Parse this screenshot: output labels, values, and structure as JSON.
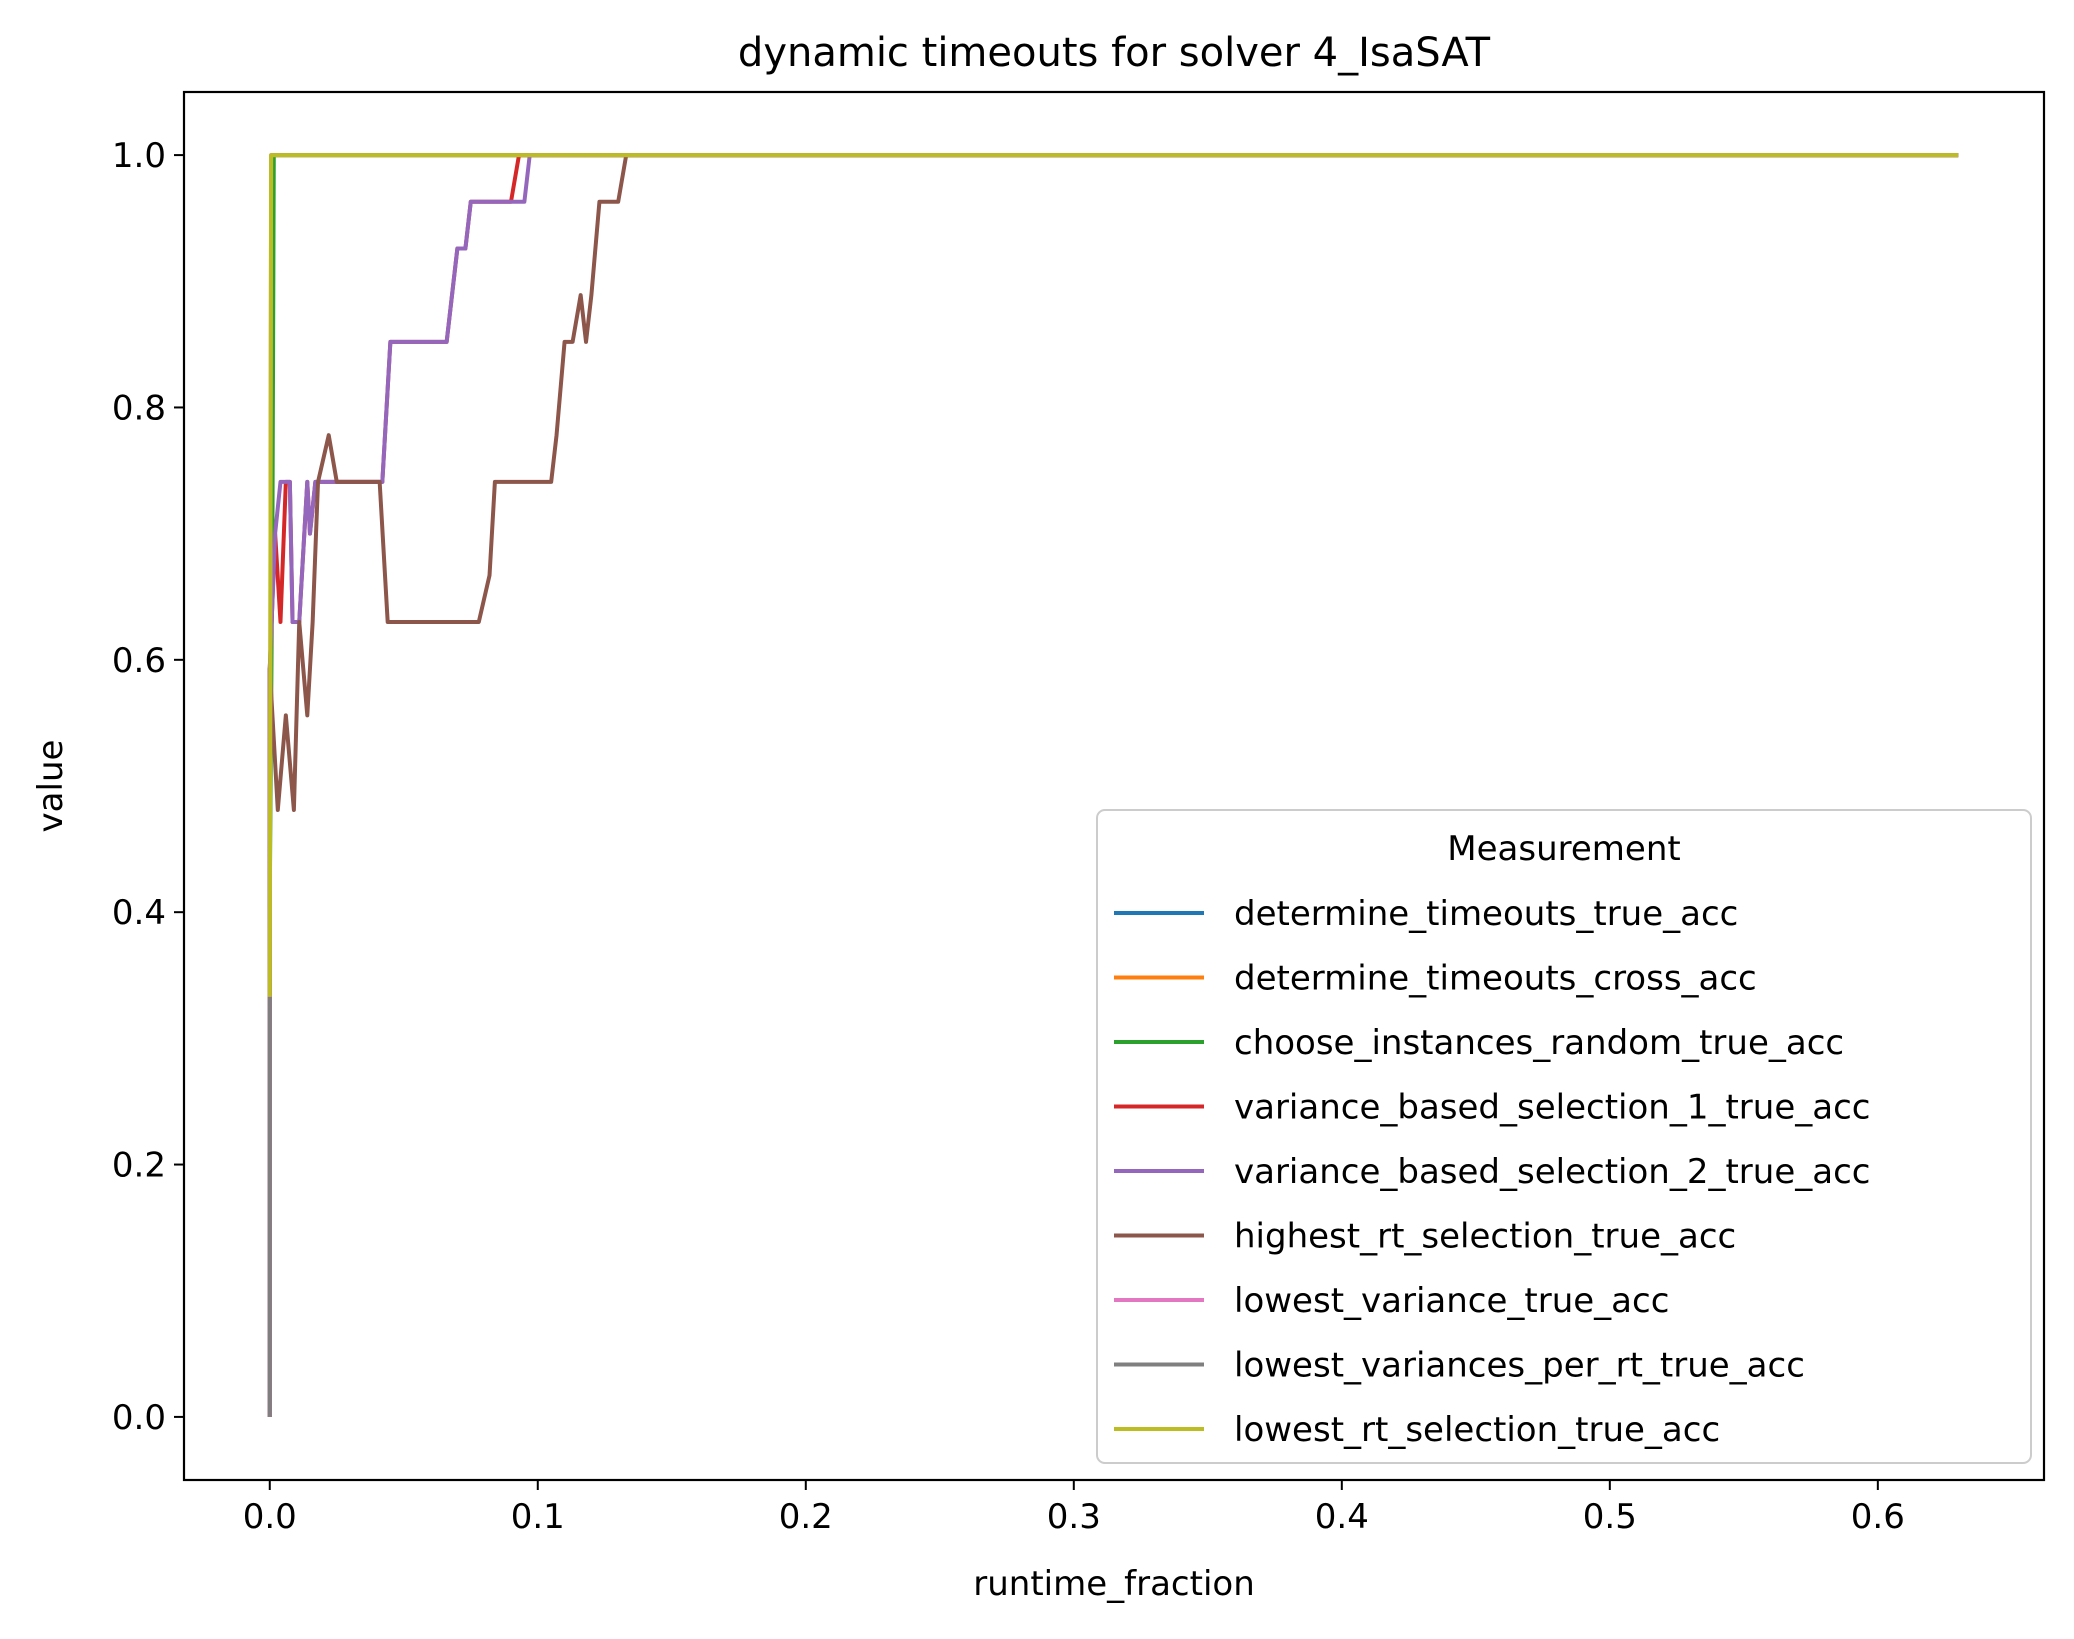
{
  "chart_data": {
    "type": "line",
    "title": "dynamic timeouts for solver 4_IsaSAT",
    "xlabel": "runtime_fraction",
    "ylabel": "value",
    "xlim": [
      -0.032,
      0.662
    ],
    "ylim": [
      -0.05,
      1.05
    ],
    "xticks": [
      0.0,
      0.1,
      0.2,
      0.3,
      0.4,
      0.5,
      0.6
    ],
    "xtick_labels": [
      "0.0",
      "0.1",
      "0.2",
      "0.3",
      "0.4",
      "0.5",
      "0.6"
    ],
    "yticks": [
      0.0,
      0.2,
      0.4,
      0.6,
      0.8,
      1.0
    ],
    "ytick_labels": [
      "0.0",
      "0.2",
      "0.4",
      "0.6",
      "0.8",
      "1.0"
    ],
    "legend": {
      "title": "Measurement",
      "placement": "lower-right"
    },
    "series": [
      {
        "name": "determine_timeouts_true_acc",
        "color": "#1f77b4",
        "x": [
          0.0,
          0.0,
          0.0005,
          0.001,
          0.63
        ],
        "y": [
          0.0,
          0.407,
          0.7,
          1.0,
          1.0
        ]
      },
      {
        "name": "determine_timeouts_cross_acc",
        "color": "#ff7f0e",
        "x": [
          0.0,
          0.0,
          0.0005,
          0.001,
          0.63
        ],
        "y": [
          0.0,
          0.407,
          0.7,
          1.0,
          1.0
        ]
      },
      {
        "name": "choose_instances_random_true_acc",
        "color": "#2ca02c",
        "x": [
          0.0,
          0.0,
          0.001,
          0.0015,
          0.63
        ],
        "y": [
          0.0,
          0.407,
          0.7,
          1.0,
          1.0
        ]
      },
      {
        "name": "variance_based_selection_1_true_acc",
        "color": "#d62728",
        "x": [
          0.0,
          0.0,
          0.002,
          0.004,
          0.004,
          0.006,
          0.0075,
          0.0085,
          0.0085,
          0.011,
          0.014,
          0.015,
          0.017,
          0.02,
          0.042,
          0.043,
          0.044,
          0.045,
          0.065,
          0.066,
          0.068,
          0.07,
          0.072,
          0.073,
          0.075,
          0.076,
          0.09,
          0.093,
          0.095,
          0.63
        ],
        "y": [
          0.0,
          0.593,
          0.7,
          0.63,
          0.63,
          0.741,
          0.741,
          0.63,
          0.63,
          0.63,
          0.741,
          0.7,
          0.741,
          0.741,
          0.741,
          0.778,
          0.815,
          0.852,
          0.852,
          0.852,
          0.889,
          0.926,
          0.926,
          0.926,
          0.963,
          0.963,
          0.963,
          1.0,
          1.0,
          1.0
        ]
      },
      {
        "name": "variance_based_selection_2_true_acc",
        "color": "#9467bd",
        "x": [
          0.0,
          0.0,
          0.002,
          0.004,
          0.006,
          0.0075,
          0.0085,
          0.0085,
          0.011,
          0.014,
          0.015,
          0.017,
          0.02,
          0.042,
          0.043,
          0.044,
          0.045,
          0.066,
          0.068,
          0.07,
          0.072,
          0.073,
          0.075,
          0.076,
          0.095,
          0.097,
          0.1,
          0.63
        ],
        "y": [
          0.0,
          0.593,
          0.7,
          0.741,
          0.741,
          0.741,
          0.63,
          0.63,
          0.63,
          0.741,
          0.7,
          0.741,
          0.741,
          0.741,
          0.778,
          0.815,
          0.852,
          0.852,
          0.889,
          0.926,
          0.926,
          0.926,
          0.963,
          0.963,
          0.963,
          1.0,
          1.0,
          1.0
        ]
      },
      {
        "name": "highest_rt_selection_true_acc",
        "color": "#8c564b",
        "x": [
          0.0,
          0.0,
          0.003,
          0.006,
          0.009,
          0.011,
          0.014,
          0.016,
          0.018,
          0.022,
          0.025,
          0.041,
          0.044,
          0.078,
          0.082,
          0.084,
          0.105,
          0.107,
          0.11,
          0.113,
          0.116,
          0.118,
          0.12,
          0.123,
          0.127,
          0.13,
          0.133,
          0.135,
          0.63
        ],
        "y": [
          0.0,
          0.593,
          0.481,
          0.556,
          0.481,
          0.63,
          0.556,
          0.63,
          0.741,
          0.778,
          0.741,
          0.741,
          0.63,
          0.63,
          0.667,
          0.741,
          0.741,
          0.778,
          0.852,
          0.852,
          0.889,
          0.852,
          0.889,
          0.963,
          0.963,
          0.963,
          1.0,
          1.0,
          1.0
        ]
      },
      {
        "name": "lowest_variance_true_acc",
        "color": "#e377c2",
        "x": [
          0.0,
          0.0,
          0.0005,
          0.63
        ],
        "y": [
          0.0,
          0.333,
          1.0,
          1.0
        ]
      },
      {
        "name": "lowest_variances_per_rt_true_acc",
        "color": "#7f7f7f",
        "x": [
          0.0,
          0.0
        ],
        "y": [
          0.0,
          0.333
        ]
      },
      {
        "name": "lowest_rt_selection_true_acc",
        "color": "#bcbd22",
        "x": [
          0.0,
          0.0,
          0.0005,
          0.63
        ],
        "y": [
          0.333,
          0.333,
          1.0,
          1.0
        ]
      }
    ]
  }
}
